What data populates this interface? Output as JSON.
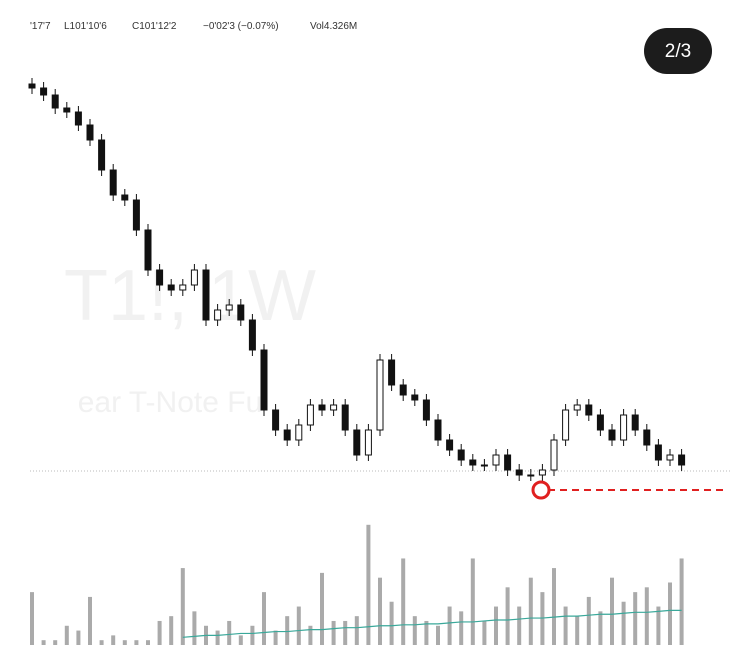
{
  "header": {
    "items": [
      "'17'7",
      "L101'10'6",
      "C101'12'2",
      "−0'02'3 (−0.07%)",
      "Vol4.326M"
    ],
    "page_badge": "2/3",
    "watermark_symbol": "T1!, 1W",
    "watermark_name": "ear T-Note Fu"
  },
  "chart_data": {
    "type": "candlestick",
    "open": [
      104,
      103,
      101.25,
      98,
      97,
      93.75,
      90,
      82.5,
      76.25,
      75,
      67.5,
      57.5,
      53.75,
      52.5,
      53.75,
      57.5,
      45,
      47.5,
      48.75,
      45,
      37.5,
      22.5,
      17.5,
      15,
      18.75,
      23.75,
      22.5,
      23.75,
      17.5,
      11.25,
      17.5,
      35,
      28.75,
      26.25,
      25,
      20,
      15,
      12.5,
      10,
      8.75,
      8.75,
      11.25,
      7.5,
      6.25,
      6.25,
      7.5,
      15,
      22.5,
      23.75,
      21.25,
      17.5,
      15,
      21.25,
      17.5,
      13.75,
      10,
      11.25
    ],
    "high": [
      105.5,
      104.5,
      102.75,
      99.5,
      98.5,
      95.25,
      91.5,
      84,
      77.75,
      76.5,
      69,
      59,
      55.25,
      55.25,
      59,
      59,
      49,
      50.25,
      50.25,
      46.5,
      39,
      24,
      19,
      20.25,
      25.25,
      25.25,
      25.25,
      25.25,
      19,
      19,
      36.5,
      36.5,
      30.25,
      27.75,
      26.5,
      21.5,
      16.5,
      14,
      11.5,
      10.25,
      12.75,
      12.75,
      9,
      7.75,
      9,
      16.5,
      24,
      25.25,
      25.25,
      22.75,
      19,
      22.75,
      22.75,
      19,
      15.25,
      12.75,
      12.75
    ],
    "low": [
      101.5,
      99.75,
      96.5,
      95.5,
      92.25,
      88.5,
      81,
      74.75,
      73.5,
      66,
      56,
      52.25,
      51,
      51,
      52.25,
      43.5,
      43.5,
      46,
      43.5,
      36,
      21,
      16,
      13.5,
      13.5,
      17.25,
      21,
      21,
      16,
      9.75,
      9.75,
      16,
      27.25,
      24.75,
      23.5,
      18.5,
      13.5,
      11,
      8.5,
      7.25,
      7.25,
      7.25,
      6,
      4.75,
      4.75,
      4.75,
      6,
      13.5,
      21,
      19.75,
      16,
      13.5,
      13.5,
      16,
      12.25,
      8.5,
      8.5,
      7.25
    ],
    "close": [
      103,
      101.25,
      98,
      97,
      93.75,
      90,
      82.5,
      76.25,
      75,
      67.5,
      57.5,
      53.75,
      52.5,
      53.75,
      57.5,
      45,
      47.5,
      48.75,
      45,
      37.5,
      22.5,
      17.5,
      15,
      18.75,
      23.75,
      22.5,
      23.75,
      17.5,
      11.25,
      17.5,
      35,
      28.75,
      26.25,
      25,
      20,
      15,
      12.5,
      10,
      8.75,
      8.75,
      11.25,
      7.5,
      6.25,
      6.25,
      7.5,
      15,
      22.5,
      23.75,
      21.25,
      17.5,
      15,
      21.25,
      17.5,
      13.75,
      10,
      11.25,
      8.75
    ],
    "ylim": [
      0,
      105
    ],
    "volume": [
      55,
      5,
      5,
      20,
      15,
      50,
      5,
      10,
      5,
      5,
      5,
      25,
      30,
      80,
      35,
      20,
      15,
      25,
      10,
      20,
      55,
      15,
      30,
      40,
      20,
      75,
      25,
      25,
      30,
      125,
      70,
      45,
      90,
      30,
      25,
      20,
      40,
      35,
      90,
      25,
      40,
      60,
      40,
      70,
      55,
      80,
      40,
      30,
      50,
      35,
      70,
      45,
      55,
      60,
      40,
      65,
      90
    ],
    "volume_ma": [
      null,
      null,
      null,
      null,
      null,
      null,
      null,
      null,
      null,
      null,
      null,
      null,
      null,
      8,
      9,
      10,
      10,
      11,
      12,
      12,
      13,
      14,
      14,
      15,
      16,
      16,
      17,
      18,
      18,
      19,
      20,
      20,
      21,
      21,
      22,
      22,
      23,
      24,
      24,
      25,
      26,
      26,
      27,
      28,
      28,
      29,
      30,
      30,
      31,
      32,
      32,
      33,
      34,
      34,
      35,
      36,
      36
    ],
    "volume_ylim": [
      0,
      130
    ],
    "price_line": 7.25,
    "marked_level": 2.5,
    "candle_color": "#111111",
    "volume_color": "#aaaaaa",
    "ma_color": "#3aa89a",
    "marker_color": "#e02020"
  }
}
